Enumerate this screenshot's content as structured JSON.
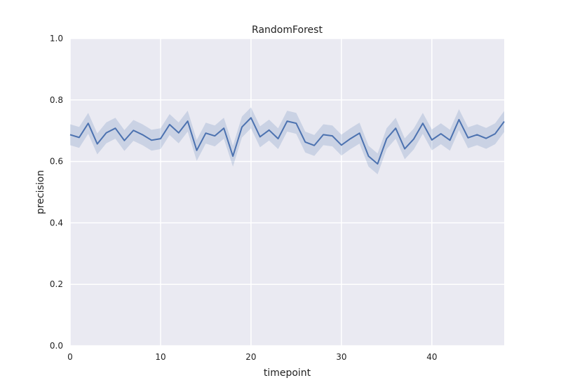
{
  "chart_data": {
    "type": "line",
    "title": "RandomForest",
    "xlabel": "timepoint",
    "ylabel": "precision",
    "xlim": [
      0,
      48
    ],
    "ylim": [
      0.0,
      1.0
    ],
    "x_ticks": [
      0,
      10,
      20,
      30,
      40
    ],
    "x_tick_labels": [
      "0",
      "10",
      "20",
      "30",
      "40"
    ],
    "y_ticks": [
      0.0,
      0.2,
      0.4,
      0.6,
      0.8,
      1.0
    ],
    "y_tick_labels": [
      "0.0",
      "0.2",
      "0.4",
      "0.6",
      "0.8",
      "1.0"
    ],
    "grid": true,
    "colors": {
      "plot_background": "#eaeaf2",
      "grid": "#ffffff",
      "line": "#4c72b0",
      "band": "#4c72b0"
    },
    "series": [
      {
        "x": [
          0,
          1,
          2,
          3,
          4,
          5,
          6,
          7,
          8,
          9,
          10,
          11,
          12,
          13,
          14,
          15,
          16,
          17,
          18,
          19,
          20,
          21,
          22,
          23,
          24,
          25,
          26,
          27,
          28,
          29,
          30,
          31,
          32,
          33,
          34,
          35,
          36,
          37,
          38,
          39,
          40,
          41,
          42,
          43,
          44,
          45,
          46,
          47,
          48
        ],
        "y": [
          0.687,
          0.678,
          0.724,
          0.657,
          0.693,
          0.708,
          0.668,
          0.701,
          0.687,
          0.669,
          0.674,
          0.72,
          0.693,
          0.731,
          0.636,
          0.692,
          0.683,
          0.708,
          0.617,
          0.712,
          0.742,
          0.68,
          0.702,
          0.674,
          0.731,
          0.724,
          0.663,
          0.652,
          0.687,
          0.683,
          0.653,
          0.674,
          0.692,
          0.617,
          0.592,
          0.674,
          0.708,
          0.641,
          0.673,
          0.724,
          0.67,
          0.69,
          0.669,
          0.736,
          0.677,
          0.687,
          0.675,
          0.69,
          0.73
        ],
        "lower": [
          0.653,
          0.644,
          0.69,
          0.623,
          0.659,
          0.674,
          0.634,
          0.667,
          0.653,
          0.635,
          0.64,
          0.686,
          0.659,
          0.697,
          0.602,
          0.658,
          0.649,
          0.674,
          0.583,
          0.678,
          0.708,
          0.646,
          0.668,
          0.64,
          0.697,
          0.69,
          0.629,
          0.618,
          0.653,
          0.649,
          0.619,
          0.64,
          0.658,
          0.583,
          0.558,
          0.64,
          0.674,
          0.607,
          0.639,
          0.69,
          0.636,
          0.656,
          0.635,
          0.702,
          0.643,
          0.653,
          0.641,
          0.656,
          0.696
        ],
        "upper": [
          0.721,
          0.712,
          0.758,
          0.691,
          0.727,
          0.742,
          0.702,
          0.735,
          0.721,
          0.703,
          0.708,
          0.754,
          0.727,
          0.765,
          0.67,
          0.726,
          0.717,
          0.742,
          0.651,
          0.746,
          0.776,
          0.714,
          0.736,
          0.708,
          0.765,
          0.758,
          0.697,
          0.686,
          0.721,
          0.717,
          0.687,
          0.708,
          0.726,
          0.651,
          0.626,
          0.708,
          0.742,
          0.675,
          0.707,
          0.758,
          0.704,
          0.724,
          0.703,
          0.77,
          0.711,
          0.721,
          0.709,
          0.724,
          0.764
        ]
      }
    ]
  }
}
